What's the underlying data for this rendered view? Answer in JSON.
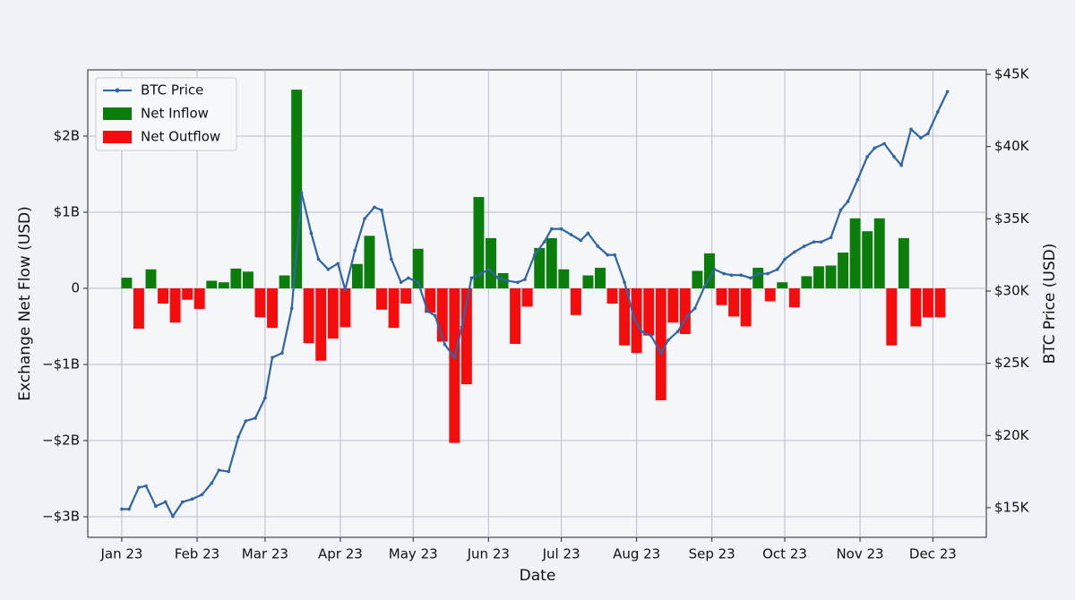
{
  "chart_data": {
    "type": "combo",
    "x_label": "Date",
    "y_label": "Exchange Net Flow (USD)",
    "y2_label": "BTC Price (USD)",
    "grid": true,
    "legend": "upper left",
    "xlim": [
      -14,
      356
    ],
    "xticks": [
      {
        "value": 0,
        "label": "Jan 23"
      },
      {
        "value": 31,
        "label": "Feb 23"
      },
      {
        "value": 59,
        "label": "Mar 23"
      },
      {
        "value": 90,
        "label": "Apr 23"
      },
      {
        "value": 120,
        "label": "May 23"
      },
      {
        "value": 151,
        "label": "Jun 23"
      },
      {
        "value": 181,
        "label": "Jul 23"
      },
      {
        "value": 212,
        "label": "Aug 23"
      },
      {
        "value": 243,
        "label": "Sep 23"
      },
      {
        "value": 273,
        "label": "Oct 23"
      },
      {
        "value": 304,
        "label": "Nov 23"
      },
      {
        "value": 334,
        "label": "Dec 23"
      }
    ],
    "ylim": [
      -3270000000,
      2870000000
    ],
    "yticks": [
      {
        "value": -3000000000,
        "label": "−$3B"
      },
      {
        "value": -2000000000,
        "label": "−$2B"
      },
      {
        "value": -1000000000,
        "label": "−$1B"
      },
      0,
      {
        "value": 1000000000,
        "label": "$1B"
      },
      {
        "value": 2000000000,
        "label": "$2B"
      }
    ],
    "y2lim": [
      12950,
      45310
    ],
    "y2ticks": [
      {
        "value": 15000,
        "label": "$15K"
      },
      {
        "value": 20000,
        "label": "$20K"
      },
      {
        "value": 25000,
        "label": "$25K"
      },
      {
        "value": 30000,
        "label": "$30K"
      },
      {
        "value": 35000,
        "label": "$35K"
      },
      {
        "value": 40000,
        "label": "$40K"
      },
      {
        "value": 45000,
        "label": "$45K"
      }
    ],
    "x": [
      2,
      7,
      12,
      17,
      22,
      27,
      32,
      37,
      42,
      47,
      52,
      57,
      62,
      67,
      72,
      77,
      82,
      87,
      92,
      97,
      102,
      107,
      112,
      117,
      122,
      127,
      132,
      137,
      142,
      147,
      152,
      157,
      162,
      167,
      172,
      177,
      182,
      187,
      192,
      197,
      202,
      207,
      212,
      217,
      222,
      227,
      232,
      237,
      242,
      247,
      252,
      257,
      262,
      267,
      272,
      277,
      282,
      287,
      292,
      297,
      302,
      307,
      312,
      317,
      322,
      327,
      332,
      337
    ],
    "series": [
      {
        "name": "BTC Price",
        "type": "line",
        "axis": "y2",
        "color": "#2f65a7",
        "x": [
          0,
          3,
          7,
          10,
          14,
          18,
          21,
          25,
          29,
          33,
          37,
          40,
          44,
          48,
          51,
          55,
          59,
          62,
          66,
          70,
          74,
          78,
          81,
          85,
          89,
          92,
          96,
          100,
          104,
          107,
          111,
          115,
          118,
          122,
          126,
          129,
          133,
          137,
          140,
          144,
          148,
          151,
          155,
          159,
          163,
          166,
          170,
          174,
          177,
          181,
          185,
          189,
          192,
          196,
          200,
          203,
          207,
          211,
          214,
          218,
          222,
          225,
          229,
          233,
          236,
          240,
          244,
          248,
          251,
          255,
          259,
          262,
          266,
          270,
          273,
          277,
          281,
          285,
          288,
          292,
          296,
          299,
          303,
          307,
          310,
          314,
          318,
          321,
          325,
          329,
          332,
          336,
          340
        ],
        "values": [
          14900,
          14900,
          16400,
          16500,
          15100,
          15400,
          14400,
          15400,
          15600,
          15900,
          16700,
          17600,
          17500,
          19900,
          21000,
          21200,
          22600,
          25400,
          25700,
          28800,
          36800,
          34000,
          32200,
          31500,
          31900,
          30100,
          32800,
          35000,
          35800,
          35600,
          32200,
          30600,
          30900,
          30600,
          28600,
          28300,
          26300,
          25400,
          27500,
          30900,
          31200,
          31500,
          30900,
          30700,
          30600,
          30800,
          32500,
          33400,
          34300,
          34300,
          33900,
          33500,
          34000,
          33100,
          32500,
          32500,
          30600,
          28100,
          27200,
          26900,
          25700,
          26600,
          27200,
          28300,
          28800,
          30300,
          31500,
          31200,
          31100,
          31100,
          30900,
          31200,
          31200,
          31500,
          32200,
          32700,
          33100,
          33400,
          33400,
          33700,
          35600,
          36200,
          37700,
          39300,
          39900,
          40200,
          39300,
          38700,
          41200,
          40600,
          40900,
          42400,
          43800
        ]
      },
      {
        "name": "Net Inflow",
        "type": "bar",
        "color": "#0a7d0a",
        "values": [
          140000000,
          null,
          250000000,
          null,
          null,
          null,
          null,
          100000000,
          80000000,
          260000000,
          220000000,
          null,
          null,
          170000000,
          2610000000,
          null,
          null,
          null,
          null,
          320000000,
          690000000,
          null,
          null,
          null,
          520000000,
          null,
          null,
          null,
          null,
          1200000000,
          660000000,
          200000000,
          null,
          null,
          530000000,
          660000000,
          250000000,
          null,
          170000000,
          270000000,
          null,
          null,
          null,
          null,
          null,
          null,
          null,
          230000000,
          460000000,
          null,
          null,
          null,
          270000000,
          null,
          80000000,
          null,
          160000000,
          290000000,
          300000000,
          470000000,
          920000000,
          750000000,
          920000000,
          null,
          660000000,
          null,
          null,
          null
        ]
      },
      {
        "name": "Net Outflow",
        "type": "bar",
        "color": "#f50d0d",
        "values": [
          null,
          -530000000,
          null,
          -200000000,
          -450000000,
          -150000000,
          -270000000,
          null,
          null,
          null,
          null,
          -380000000,
          -520000000,
          null,
          null,
          -720000000,
          -950000000,
          -660000000,
          -510000000,
          null,
          null,
          -280000000,
          -520000000,
          -200000000,
          null,
          -320000000,
          -700000000,
          -2030000000,
          -1260000000,
          null,
          null,
          null,
          -730000000,
          -240000000,
          null,
          null,
          null,
          -350000000,
          null,
          null,
          -200000000,
          -750000000,
          -850000000,
          -620000000,
          -1470000000,
          -450000000,
          -600000000,
          null,
          null,
          -220000000,
          -370000000,
          -500000000,
          null,
          -170000000,
          null,
          -250000000,
          null,
          null,
          null,
          null,
          null,
          null,
          null,
          -750000000,
          null,
          -500000000,
          -380000000,
          -380000000
        ]
      }
    ]
  }
}
